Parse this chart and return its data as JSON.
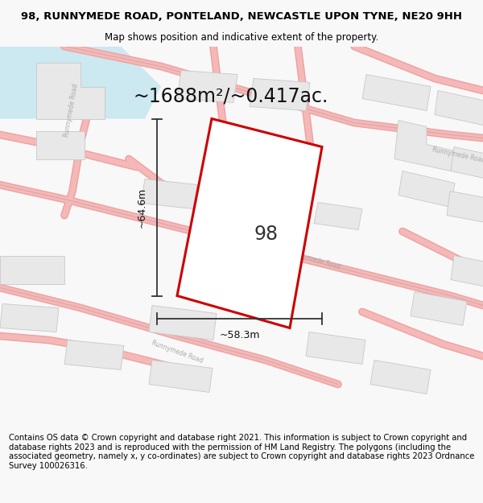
{
  "title": "98, RUNNYMEDE ROAD, PONTELAND, NEWCASTLE UPON TYNE, NE20 9HH",
  "subtitle": "Map shows position and indicative extent of the property.",
  "area_text": "~1688m²/~0.417ac.",
  "width_label": "~58.3m",
  "height_label": "~64.6m",
  "number_label": "98",
  "footer": "Contains OS data © Crown copyright and database right 2021. This information is subject to Crown copyright and database rights 2023 and is reproduced with the permission of HM Land Registry. The polygons (including the associated geometry, namely x, y co-ordinates) are subject to Crown copyright and database rights 2023 Ordnance Survey 100026316.",
  "bg_color": "#f8f8f8",
  "map_bg": "#ffffff",
  "road_color": "#f5b8b8",
  "road_outline": "#f0a0a0",
  "building_fill": "#e8e8e8",
  "building_edge": "#c8c8c8",
  "prop_color": "#cc0000",
  "title_fontsize": 9.5,
  "subtitle_fontsize": 8.5,
  "area_fontsize": 17,
  "dim_fontsize": 9,
  "num_fontsize": 17,
  "footer_fontsize": 7.2
}
